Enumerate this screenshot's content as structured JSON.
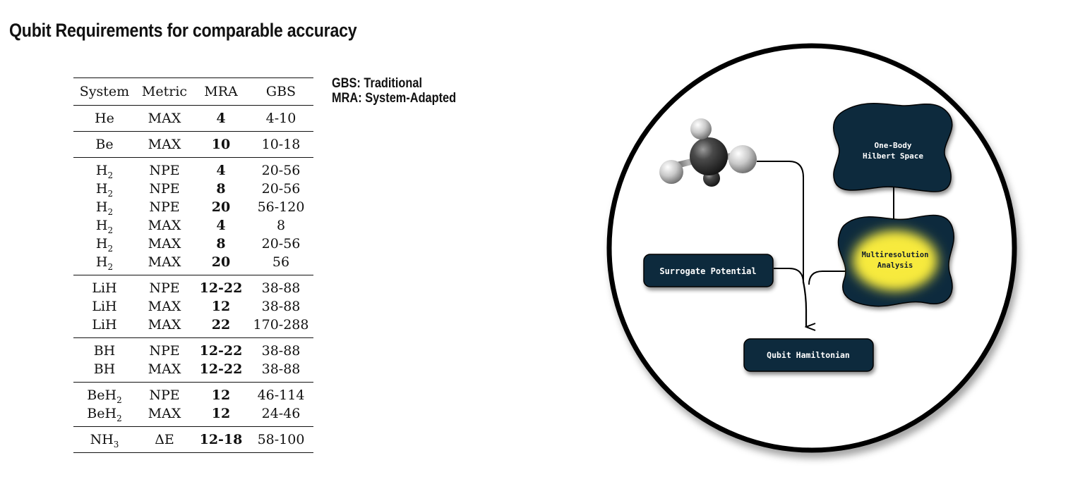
{
  "title": "Qubit Requirements for comparable accuracy",
  "legend": {
    "gbs": "GBS: Traditional",
    "mra": "MRA: System-Adapted"
  },
  "table": {
    "headers": [
      "System",
      "Metric",
      "MRA",
      "GBS"
    ],
    "groups": [
      [
        {
          "system": "He",
          "sub": "",
          "metric": "MAX",
          "mra": "4",
          "gbs": "4-10"
        }
      ],
      [
        {
          "system": "Be",
          "sub": "",
          "metric": "MAX",
          "mra": "10",
          "gbs": "10-18"
        }
      ],
      [
        {
          "system": "H",
          "sub": "2",
          "metric": "NPE",
          "mra": "4",
          "gbs": "20-56"
        },
        {
          "system": "H",
          "sub": "2",
          "metric": "NPE",
          "mra": "8",
          "gbs": "20-56"
        },
        {
          "system": "H",
          "sub": "2",
          "metric": "NPE",
          "mra": "20",
          "gbs": "56-120"
        },
        {
          "system": "H",
          "sub": "2",
          "metric": "MAX",
          "mra": "4",
          "gbs": "8"
        },
        {
          "system": "H",
          "sub": "2",
          "metric": "MAX",
          "mra": "8",
          "gbs": "20-56"
        },
        {
          "system": "H",
          "sub": "2",
          "metric": "MAX",
          "mra": "20",
          "gbs": "56"
        }
      ],
      [
        {
          "system": "LiH",
          "sub": "",
          "metric": "NPE",
          "mra": "12-22",
          "gbs": "38-88"
        },
        {
          "system": "LiH",
          "sub": "",
          "metric": "MAX",
          "mra": "12",
          "gbs": "38-88"
        },
        {
          "system": "LiH",
          "sub": "",
          "metric": "MAX",
          "mra": "22",
          "gbs": "170-288"
        }
      ],
      [
        {
          "system": "BH",
          "sub": "",
          "metric": "NPE",
          "mra": "12-22",
          "gbs": "38-88"
        },
        {
          "system": "BH",
          "sub": "",
          "metric": "MAX",
          "mra": "12-22",
          "gbs": "38-88"
        }
      ],
      [
        {
          "system": "BeH",
          "sub": "2",
          "metric": "NPE",
          "mra": "12",
          "gbs": "46-114"
        },
        {
          "system": "BeH",
          "sub": "2",
          "metric": "MAX",
          "mra": "12",
          "gbs": "24-46"
        }
      ],
      [
        {
          "system": "NH",
          "sub": "3",
          "metric": "ΔE",
          "mra": "12-18",
          "gbs": "58-100"
        }
      ]
    ]
  },
  "diagram": {
    "one_body": [
      "One-Body",
      "Hilbert Space"
    ],
    "mra": [
      "Multiresolution",
      "Analysis"
    ],
    "surrogate": "Surrogate Potential",
    "qubit_hamiltonian": "Qubit Hamiltonian",
    "colors": {
      "node_fill": "#0f2a3d",
      "highlight": "#f7ea3c",
      "node_text": "#ffffff",
      "highlight_text": "#14202c",
      "outline": "#000000"
    }
  }
}
